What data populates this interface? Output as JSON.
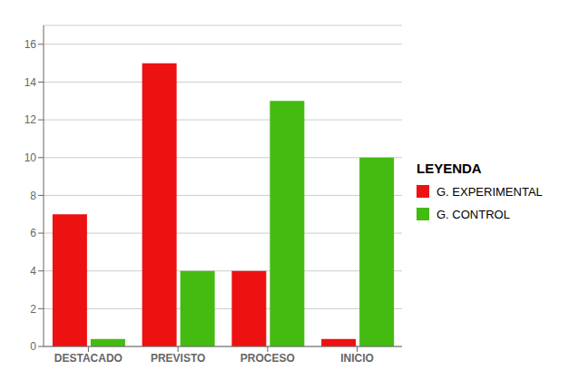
{
  "chart_data": {
    "type": "bar",
    "categories": [
      "DESTACADO",
      "PREVISTO",
      "PROCESO",
      "INICIO"
    ],
    "series": [
      {
        "name": "G. EXPERIMENTAL",
        "color": "#EE1111",
        "values": [
          7,
          15,
          4,
          0.4
        ]
      },
      {
        "name": "G. CONTROL",
        "color": "#44BB11",
        "values": [
          0.4,
          4,
          13,
          10
        ]
      }
    ],
    "ylim": [
      0,
      17
    ],
    "yticks": [
      0,
      2,
      4,
      6,
      8,
      10,
      12,
      14,
      16
    ],
    "grid": true,
    "legend": "right",
    "legend_title": "LEYENDA"
  }
}
